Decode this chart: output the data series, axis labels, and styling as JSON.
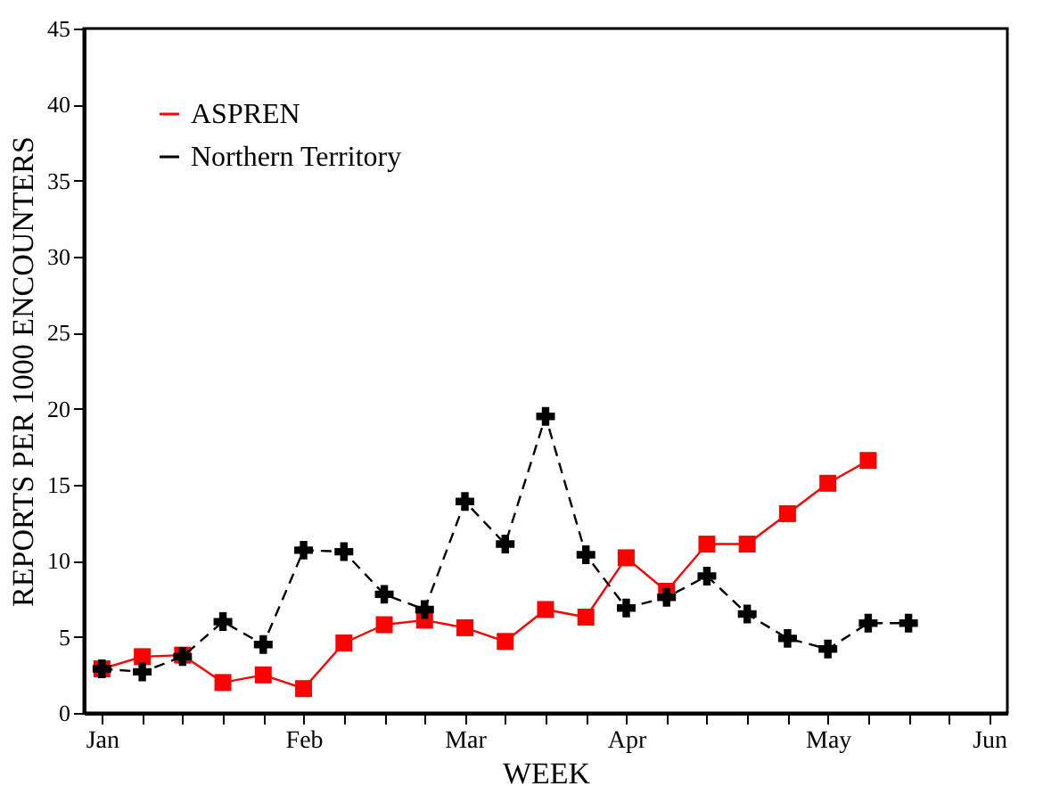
{
  "chart_data": {
    "type": "line",
    "xlabel": "WEEK",
    "ylabel": "REPORTS PER 1000 ENCOUNTERS",
    "categories": [
      "Jan",
      null,
      null,
      null,
      null,
      "Feb",
      null,
      null,
      null,
      "Mar",
      null,
      null,
      null,
      "Apr",
      null,
      null,
      null,
      null,
      "May",
      null,
      null,
      null,
      "Jun"
    ],
    "ylim": [
      0,
      45
    ],
    "yticks": [
      0,
      5,
      10,
      15,
      20,
      25,
      30,
      35,
      40,
      45
    ],
    "legend": "top left",
    "series": [
      {
        "name": "ASPREN",
        "color": "#ff0000",
        "marker": "square",
        "line_style": "solid",
        "values": [
          2.9,
          3.7,
          3.8,
          2.0,
          2.5,
          1.6,
          4.6,
          5.8,
          6.1,
          5.6,
          4.7,
          6.8,
          6.3,
          10.2,
          8.0,
          11.1,
          11.1,
          13.1,
          15.1,
          16.6,
          null,
          null,
          null
        ]
      },
      {
        "name": "Northern Territory",
        "color": "#000000",
        "marker": "cross",
        "line_style": "dashed",
        "values": [
          2.9,
          2.7,
          3.7,
          6.0,
          4.5,
          10.7,
          10.6,
          7.8,
          6.8,
          13.9,
          11.1,
          19.5,
          10.4,
          6.9,
          7.6,
          9.0,
          6.5,
          4.9,
          4.2,
          5.9,
          5.9,
          null,
          null
        ]
      }
    ]
  }
}
